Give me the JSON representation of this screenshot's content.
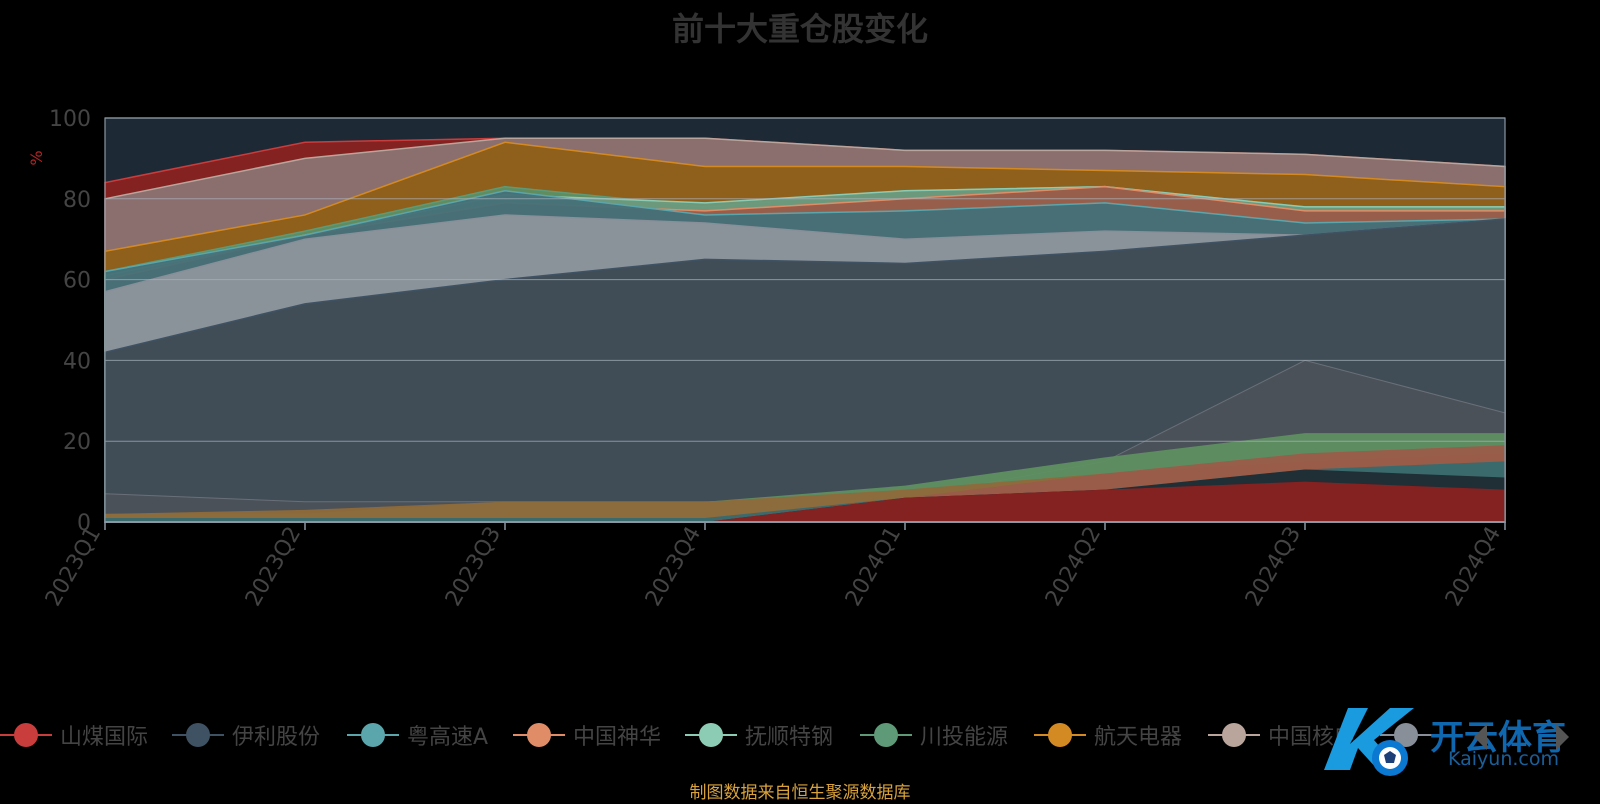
{
  "chart_data": {
    "type": "area",
    "title": "前十大重仓股变化",
    "ylabel": "%",
    "x": [
      "2023Q1",
      "2023Q2",
      "2023Q3",
      "2023Q4",
      "2024Q1",
      "2024Q2",
      "2024Q3",
      "2024Q4"
    ],
    "ylim": [
      0,
      100
    ],
    "yticks": [
      0,
      20,
      40,
      60,
      80,
      100
    ],
    "grid": true,
    "legend_position": "bottom",
    "series": [
      {
        "name": "山煤国际",
        "color": "#c93d3d",
        "values": [
          84,
          94,
          95,
          95,
          92,
          92,
          91,
          88
        ]
      },
      {
        "name": "伊利股份",
        "color": "#3f5263",
        "values": [
          42,
          54,
          60,
          65,
          64,
          67,
          71,
          75
        ]
      },
      {
        "name": "粤高速A",
        "color": "#5ba5ac",
        "values": [
          62,
          71,
          82,
          76,
          77,
          79,
          74,
          75
        ]
      },
      {
        "name": "中国神华",
        "color": "#e08d67",
        "values": [
          60,
          71,
          79,
          77,
          80,
          83,
          77,
          77
        ]
      },
      {
        "name": "抚顺特钢",
        "color": "#8ccbb4",
        "values": [
          61,
          71,
          81,
          79,
          82,
          83,
          78,
          78
        ]
      },
      {
        "name": "川投能源",
        "color": "#5e9a77",
        "values": [
          62,
          72,
          83,
          78,
          82,
          83,
          78,
          78
        ]
      },
      {
        "name": "航天电器",
        "color": "#d48a22",
        "values": [
          67,
          76,
          94,
          88,
          88,
          87,
          86,
          83
        ]
      },
      {
        "name": "中国核电",
        "color": "#b9a59b",
        "values": [
          80,
          90,
          95,
          95,
          92,
          92,
          91,
          88
        ]
      },
      {
        "name": "",
        "color": "#888f99",
        "values": [
          57,
          70,
          76,
          74,
          70,
          72,
          71,
          75
        ]
      },
      {
        "name": "",
        "color": "#4e5259",
        "values": [
          7,
          5,
          5,
          5,
          6,
          15,
          40,
          27
        ]
      }
    ],
    "bottom_bands": [
      {
        "color": "#8a2121",
        "values": [
          0,
          0,
          0,
          0,
          6,
          8,
          10,
          8
        ]
      },
      {
        "color": "#1f2b33",
        "values": [
          0,
          0,
          0,
          0,
          6,
          8,
          13,
          11
        ]
      },
      {
        "color": "#366a70",
        "values": [
          1,
          1,
          1,
          1,
          6,
          8,
          13,
          15
        ]
      },
      {
        "color": "#9a5c49",
        "values": [
          1,
          1,
          1,
          1,
          6,
          12,
          17,
          19
        ]
      },
      {
        "color": "#5f8f62",
        "values": [
          2,
          2,
          5,
          5,
          9,
          16,
          22,
          22
        ]
      },
      {
        "color": "#8e6a3a",
        "values": [
          2,
          3,
          5,
          5,
          8,
          12,
          15,
          17
        ]
      }
    ]
  },
  "source_note": "制图数据来自恒生聚源数据库",
  "watermark": {
    "brand": "开云体育",
    "domain": "Kaiyun.com"
  },
  "legend_nav": {
    "prev_icon": "triangle-left-icon",
    "next_icon": "triangle-right-icon"
  }
}
